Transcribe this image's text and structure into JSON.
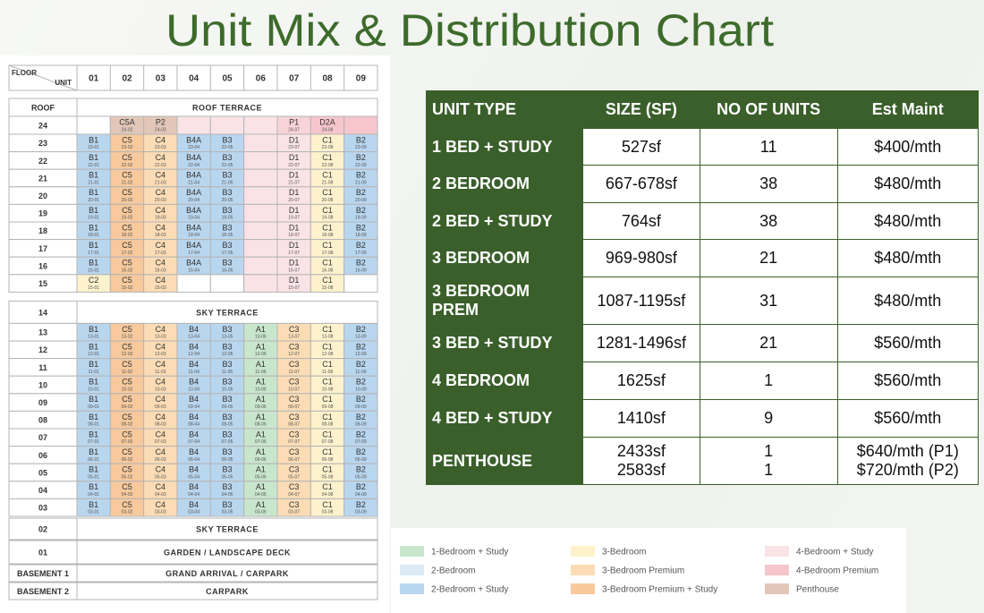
{
  "header": {
    "title": "Unit Mix & Distribution Chart"
  },
  "grid": {
    "corner_top": "FLOOR",
    "corner_bottom": "UNIT",
    "columns": [
      "01",
      "02",
      "03",
      "04",
      "05",
      "06",
      "07",
      "08",
      "09"
    ],
    "floors": [
      {
        "floor": "ROOF",
        "label": "ROOF TERRACE"
      },
      {
        "floor": "24",
        "units": [
          null,
          [
            "C5A",
            "24-02"
          ],
          [
            "P2",
            "24-03"
          ],
          null,
          null,
          null,
          [
            "P1",
            "24-07"
          ],
          [
            "D2A",
            "24-08"
          ],
          null
        ],
        "colors": [
          null,
          "#e2c7b9",
          "#e2c7b9",
          "#fae3e6",
          "#fae3e6",
          "#fae3e6",
          "#f8d3d7",
          "#f6c6cc",
          "#f6c6cc"
        ]
      },
      {
        "floor": "23",
        "units": [
          [
            "B1",
            "23-01"
          ],
          [
            "C5",
            "23-02"
          ],
          [
            "C4",
            "23-03"
          ],
          [
            "B4A",
            "23-04"
          ],
          [
            "B3",
            "23-05"
          ],
          null,
          [
            "D1",
            "23-07"
          ],
          [
            "C1",
            "23-08"
          ],
          [
            "B2",
            "23-09"
          ]
        ],
        "colors": [
          "#b9d6ef",
          "#f7c99d",
          "#fbdcb5",
          "#b9d6ef",
          "#b9d6ef",
          "#fae3e6",
          "#fae3e6",
          "#fdf2cc",
          "#b9d6ef"
        ]
      },
      {
        "floor": "22",
        "units": [
          [
            "B1",
            "22-01"
          ],
          [
            "C5",
            "22-02"
          ],
          [
            "C4",
            "22-03"
          ],
          [
            "B4A",
            "22-04"
          ],
          [
            "B3",
            "22-05"
          ],
          null,
          [
            "D1",
            "22-07"
          ],
          [
            "C1",
            "22-08"
          ],
          [
            "B2",
            "22-09"
          ]
        ],
        "colors": [
          "#b9d6ef",
          "#f7c99d",
          "#fbdcb5",
          "#b9d6ef",
          "#b9d6ef",
          "#fae3e6",
          "#fae3e6",
          "#fdf2cc",
          "#b9d6ef"
        ]
      },
      {
        "floor": "21",
        "units": [
          [
            "B1",
            "21-01"
          ],
          [
            "C5",
            "21-02"
          ],
          [
            "C4",
            "21-03"
          ],
          [
            "B4A",
            "21-04"
          ],
          [
            "B3",
            "21-05"
          ],
          null,
          [
            "D1",
            "21-07"
          ],
          [
            "C1",
            "21-08"
          ],
          [
            "B2",
            "21-09"
          ]
        ],
        "colors": [
          "#b9d6ef",
          "#f7c99d",
          "#fbdcb5",
          "#b9d6ef",
          "#b9d6ef",
          "#fae3e6",
          "#fae3e6",
          "#fdf2cc",
          "#b9d6ef"
        ]
      },
      {
        "floor": "20",
        "units": [
          [
            "B1",
            "20-01"
          ],
          [
            "C5",
            "20-02"
          ],
          [
            "C4",
            "20-03"
          ],
          [
            "B4A",
            "20-04"
          ],
          [
            "B3",
            "20-05"
          ],
          null,
          [
            "D1",
            "20-07"
          ],
          [
            "C1",
            "20-08"
          ],
          [
            "B2",
            "20-09"
          ]
        ],
        "colors": [
          "#b9d6ef",
          "#f7c99d",
          "#fbdcb5",
          "#b9d6ef",
          "#b9d6ef",
          "#fae3e6",
          "#fae3e6",
          "#fdf2cc",
          "#b9d6ef"
        ]
      },
      {
        "floor": "19",
        "units": [
          [
            "B1",
            "19-01"
          ],
          [
            "C5",
            "19-02"
          ],
          [
            "C4",
            "19-03"
          ],
          [
            "B4A",
            "19-04"
          ],
          [
            "B3",
            "19-05"
          ],
          null,
          [
            "D1",
            "19-07"
          ],
          [
            "C1",
            "19-08"
          ],
          [
            "B2",
            "19-09"
          ]
        ],
        "colors": [
          "#b9d6ef",
          "#f7c99d",
          "#fbdcb5",
          "#b9d6ef",
          "#b9d6ef",
          "#fae3e6",
          "#fae3e6",
          "#fdf2cc",
          "#b9d6ef"
        ]
      },
      {
        "floor": "18",
        "units": [
          [
            "B1",
            "18-01"
          ],
          [
            "C5",
            "18-02"
          ],
          [
            "C4",
            "18-03"
          ],
          [
            "B4A",
            "18-04"
          ],
          [
            "B3",
            "18-05"
          ],
          null,
          [
            "D1",
            "18-07"
          ],
          [
            "C1",
            "18-08"
          ],
          [
            "B2",
            "18-09"
          ]
        ],
        "colors": [
          "#b9d6ef",
          "#f7c99d",
          "#fbdcb5",
          "#b9d6ef",
          "#b9d6ef",
          "#fae3e6",
          "#fae3e6",
          "#fdf2cc",
          "#b9d6ef"
        ]
      },
      {
        "floor": "17",
        "units": [
          [
            "B1",
            "17-01"
          ],
          [
            "C5",
            "17-02"
          ],
          [
            "C4",
            "17-03"
          ],
          [
            "B4A",
            "17-04"
          ],
          [
            "B3",
            "17-05"
          ],
          null,
          [
            "D1",
            "17-07"
          ],
          [
            "C1",
            "17-08"
          ],
          [
            "B2",
            "17-09"
          ]
        ],
        "colors": [
          "#b9d6ef",
          "#f7c99d",
          "#fbdcb5",
          "#b9d6ef",
          "#b9d6ef",
          "#fae3e6",
          "#fae3e6",
          "#fdf2cc",
          "#b9d6ef"
        ]
      },
      {
        "floor": "16",
        "units": [
          [
            "B1",
            "16-01"
          ],
          [
            "C5",
            "16-02"
          ],
          [
            "C4",
            "16-03"
          ],
          [
            "B4A",
            "16-04"
          ],
          [
            "B3",
            "16-05"
          ],
          null,
          [
            "D1",
            "16-07"
          ],
          [
            "C1",
            "16-08"
          ],
          [
            "B2",
            "16-09"
          ]
        ],
        "colors": [
          "#b9d6ef",
          "#f7c99d",
          "#fbdcb5",
          "#b9d6ef",
          "#b9d6ef",
          "#fae3e6",
          "#fae3e6",
          "#fdf2cc",
          "#b9d6ef"
        ]
      },
      {
        "floor": "15",
        "units": [
          [
            "C2",
            "15-01"
          ],
          [
            "C5",
            "15-02"
          ],
          [
            "C4",
            "15-03"
          ],
          null,
          null,
          null,
          [
            "D1",
            "15-07"
          ],
          [
            "C1",
            "15-08"
          ],
          null
        ],
        "colors": [
          "#fdf2cc",
          "#f7c99d",
          "#fbdcb5",
          null,
          null,
          "#fae3e6",
          "#fae3e6",
          "#fdf2cc",
          null
        ]
      },
      {
        "floor": "14",
        "label": "SKY TERRACE"
      },
      {
        "floor": "13",
        "units": [
          [
            "B1",
            "13-01"
          ],
          [
            "C5",
            "13-02"
          ],
          [
            "C4",
            "13-03"
          ],
          [
            "B4",
            "13-04"
          ],
          [
            "B3",
            "13-05"
          ],
          [
            "A1",
            "13-06"
          ],
          [
            "C3",
            "13-07"
          ],
          [
            "C1",
            "13-08"
          ],
          [
            "B2",
            "13-09"
          ]
        ],
        "colors": [
          "#b9d6ef",
          "#f7c99d",
          "#fbdcb5",
          "#b9d6ef",
          "#b9d6ef",
          "#c8e6cc",
          "#fbdcb5",
          "#fdf2cc",
          "#b9d6ef"
        ]
      },
      {
        "floor": "12",
        "units": [
          [
            "B1",
            "12-01"
          ],
          [
            "C5",
            "12-02"
          ],
          [
            "C4",
            "12-03"
          ],
          [
            "B4",
            "12-04"
          ],
          [
            "B3",
            "12-05"
          ],
          [
            "A1",
            "12-06"
          ],
          [
            "C3",
            "12-07"
          ],
          [
            "C1",
            "12-08"
          ],
          [
            "B2",
            "12-09"
          ]
        ],
        "colors": [
          "#b9d6ef",
          "#f7c99d",
          "#fbdcb5",
          "#b9d6ef",
          "#b9d6ef",
          "#c8e6cc",
          "#fbdcb5",
          "#fdf2cc",
          "#b9d6ef"
        ]
      },
      {
        "floor": "11",
        "units": [
          [
            "B1",
            "11-01"
          ],
          [
            "C5",
            "11-02"
          ],
          [
            "C4",
            "11-03"
          ],
          [
            "B4",
            "11-04"
          ],
          [
            "B3",
            "11-05"
          ],
          [
            "A1",
            "11-06"
          ],
          [
            "C3",
            "11-07"
          ],
          [
            "C1",
            "11-08"
          ],
          [
            "B2",
            "11-09"
          ]
        ],
        "colors": [
          "#b9d6ef",
          "#f7c99d",
          "#fbdcb5",
          "#b9d6ef",
          "#b9d6ef",
          "#c8e6cc",
          "#fbdcb5",
          "#fdf2cc",
          "#b9d6ef"
        ]
      },
      {
        "floor": "10",
        "units": [
          [
            "B1",
            "10-01"
          ],
          [
            "C5",
            "10-02"
          ],
          [
            "C4",
            "10-03"
          ],
          [
            "B4",
            "10-04"
          ],
          [
            "B3",
            "10-05"
          ],
          [
            "A1",
            "10-06"
          ],
          [
            "C3",
            "10-07"
          ],
          [
            "C1",
            "10-08"
          ],
          [
            "B2",
            "10-09"
          ]
        ],
        "colors": [
          "#b9d6ef",
          "#f7c99d",
          "#fbdcb5",
          "#b9d6ef",
          "#b9d6ef",
          "#c8e6cc",
          "#fbdcb5",
          "#fdf2cc",
          "#b9d6ef"
        ]
      },
      {
        "floor": "09",
        "units": [
          [
            "B1",
            "09-01"
          ],
          [
            "C5",
            "09-02"
          ],
          [
            "C4",
            "09-03"
          ],
          [
            "B4",
            "09-04"
          ],
          [
            "B3",
            "09-05"
          ],
          [
            "A1",
            "09-06"
          ],
          [
            "C3",
            "09-07"
          ],
          [
            "C1",
            "09-08"
          ],
          [
            "B2",
            "09-09"
          ]
        ],
        "colors": [
          "#b9d6ef",
          "#f7c99d",
          "#fbdcb5",
          "#b9d6ef",
          "#b9d6ef",
          "#c8e6cc",
          "#fbdcb5",
          "#fdf2cc",
          "#b9d6ef"
        ]
      },
      {
        "floor": "08",
        "units": [
          [
            "B1",
            "08-01"
          ],
          [
            "C5",
            "08-02"
          ],
          [
            "C4",
            "08-03"
          ],
          [
            "B4",
            "08-04"
          ],
          [
            "B3",
            "08-05"
          ],
          [
            "A1",
            "08-06"
          ],
          [
            "C3",
            "08-07"
          ],
          [
            "C1",
            "08-08"
          ],
          [
            "B2",
            "08-09"
          ]
        ],
        "colors": [
          "#b9d6ef",
          "#f7c99d",
          "#fbdcb5",
          "#b9d6ef",
          "#b9d6ef",
          "#c8e6cc",
          "#fbdcb5",
          "#fdf2cc",
          "#b9d6ef"
        ]
      },
      {
        "floor": "07",
        "units": [
          [
            "B1",
            "07-01"
          ],
          [
            "C5",
            "07-02"
          ],
          [
            "C4",
            "07-03"
          ],
          [
            "B4",
            "07-04"
          ],
          [
            "B3",
            "07-05"
          ],
          [
            "A1",
            "07-06"
          ],
          [
            "C3",
            "07-07"
          ],
          [
            "C1",
            "07-08"
          ],
          [
            "B2",
            "07-09"
          ]
        ],
        "colors": [
          "#b9d6ef",
          "#f7c99d",
          "#fbdcb5",
          "#b9d6ef",
          "#b9d6ef",
          "#c8e6cc",
          "#fbdcb5",
          "#fdf2cc",
          "#b9d6ef"
        ]
      },
      {
        "floor": "06",
        "units": [
          [
            "B1",
            "06-01"
          ],
          [
            "C5",
            "06-02"
          ],
          [
            "C4",
            "06-03"
          ],
          [
            "B4",
            "06-04"
          ],
          [
            "B3",
            "06-05"
          ],
          [
            "A1",
            "06-06"
          ],
          [
            "C3",
            "06-07"
          ],
          [
            "C1",
            "06-08"
          ],
          [
            "B2",
            "06-09"
          ]
        ],
        "colors": [
          "#b9d6ef",
          "#f7c99d",
          "#fbdcb5",
          "#b9d6ef",
          "#b9d6ef",
          "#c8e6cc",
          "#fbdcb5",
          "#fdf2cc",
          "#b9d6ef"
        ]
      },
      {
        "floor": "05",
        "units": [
          [
            "B1",
            "05-01"
          ],
          [
            "C5",
            "05-02"
          ],
          [
            "C4",
            "05-03"
          ],
          [
            "B4",
            "05-04"
          ],
          [
            "B3",
            "05-05"
          ],
          [
            "A1",
            "05-06"
          ],
          [
            "C3",
            "05-07"
          ],
          [
            "C1",
            "05-08"
          ],
          [
            "B2",
            "05-09"
          ]
        ],
        "colors": [
          "#b9d6ef",
          "#f7c99d",
          "#fbdcb5",
          "#b9d6ef",
          "#b9d6ef",
          "#c8e6cc",
          "#fbdcb5",
          "#fdf2cc",
          "#b9d6ef"
        ]
      },
      {
        "floor": "04",
        "units": [
          [
            "B1",
            "04-01"
          ],
          [
            "C5",
            "04-02"
          ],
          [
            "C4",
            "04-03"
          ],
          [
            "B4",
            "04-04"
          ],
          [
            "B3",
            "04-05"
          ],
          [
            "A1",
            "04-06"
          ],
          [
            "C3",
            "04-07"
          ],
          [
            "C1",
            "04-08"
          ],
          [
            "B2",
            "04-09"
          ]
        ],
        "colors": [
          "#b9d6ef",
          "#f7c99d",
          "#fbdcb5",
          "#b9d6ef",
          "#b9d6ef",
          "#c8e6cc",
          "#fbdcb5",
          "#fdf2cc",
          "#b9d6ef"
        ]
      },
      {
        "floor": "03",
        "units": [
          [
            "B1",
            "03-01"
          ],
          [
            "C5",
            "03-02"
          ],
          [
            "C4",
            "03-03"
          ],
          [
            "B4",
            "03-04"
          ],
          [
            "B3",
            "03-05"
          ],
          [
            "A1",
            "03-06"
          ],
          [
            "C3",
            "03-07"
          ],
          [
            "C1",
            "03-08"
          ],
          [
            "B2",
            "03-09"
          ]
        ],
        "colors": [
          "#b9d6ef",
          "#f7c99d",
          "#fbdcb5",
          "#b9d6ef",
          "#b9d6ef",
          "#c8e6cc",
          "#fbdcb5",
          "#fdf2cc",
          "#b9d6ef"
        ]
      },
      {
        "floor": "02",
        "label": "SKY TERRACE"
      },
      {
        "floor": "01",
        "label": "GARDEN / LANDSCAPE DECK"
      },
      {
        "floor": "BASEMENT 1",
        "label": "GRAND ARRIVAL / CARPARK"
      },
      {
        "floor": "BASEMENT 2",
        "label": "CARPARK"
      }
    ]
  },
  "table": {
    "headers": [
      "UNIT TYPE",
      "SIZE (SF)",
      "NO OF UNITS",
      "Est Maint"
    ],
    "rows": [
      [
        "1 BED + STUDY",
        "527sf",
        "11",
        "$400/mth"
      ],
      [
        "2 BEDROOM",
        "667-678sf",
        "38",
        "$480/mth"
      ],
      [
        "2 BED + STUDY",
        "764sf",
        "38",
        "$480/mth"
      ],
      [
        "3 BEDROOM",
        "969-980sf",
        "21",
        "$480/mth"
      ],
      [
        "3 BEDROOM PREM",
        "1087-1195sf",
        "31",
        "$480/mth"
      ],
      [
        "3 BED + STUDY",
        "1281-1496sf",
        "21",
        "$560/mth"
      ],
      [
        "4 BEDROOM",
        "1625sf",
        "1",
        "$560/mth"
      ],
      [
        "4 BED + STUDY",
        "1410sf",
        "9",
        "$560/mth"
      ],
      [
        "PENTHOUSE",
        [
          "2433sf",
          "2583sf"
        ],
        [
          "1",
          "1"
        ],
        [
          "$640/mth (P1)",
          "$720/mth (P2)"
        ]
      ]
    ]
  },
  "legend": [
    {
      "label": "1-Bedroom + Study",
      "color": "#c8e6cc"
    },
    {
      "label": "2-Bedroom",
      "color": "#dcebf7"
    },
    {
      "label": "2-Bedroom + Study",
      "color": "#b9d6ef"
    },
    {
      "label": "3-Bedroom",
      "color": "#fdf2cc"
    },
    {
      "label": "3-Bedroom Premium",
      "color": "#fbdcb5"
    },
    {
      "label": "3-Bedroom Premium + Study",
      "color": "#f7c99d"
    },
    {
      "label": "4-Bedroom + Study",
      "color": "#fae3e6"
    },
    {
      "label": "4-Bedroom Premium",
      "color": "#f6c6cc"
    },
    {
      "label": "Penthouse",
      "color": "#e2c7b9"
    }
  ]
}
